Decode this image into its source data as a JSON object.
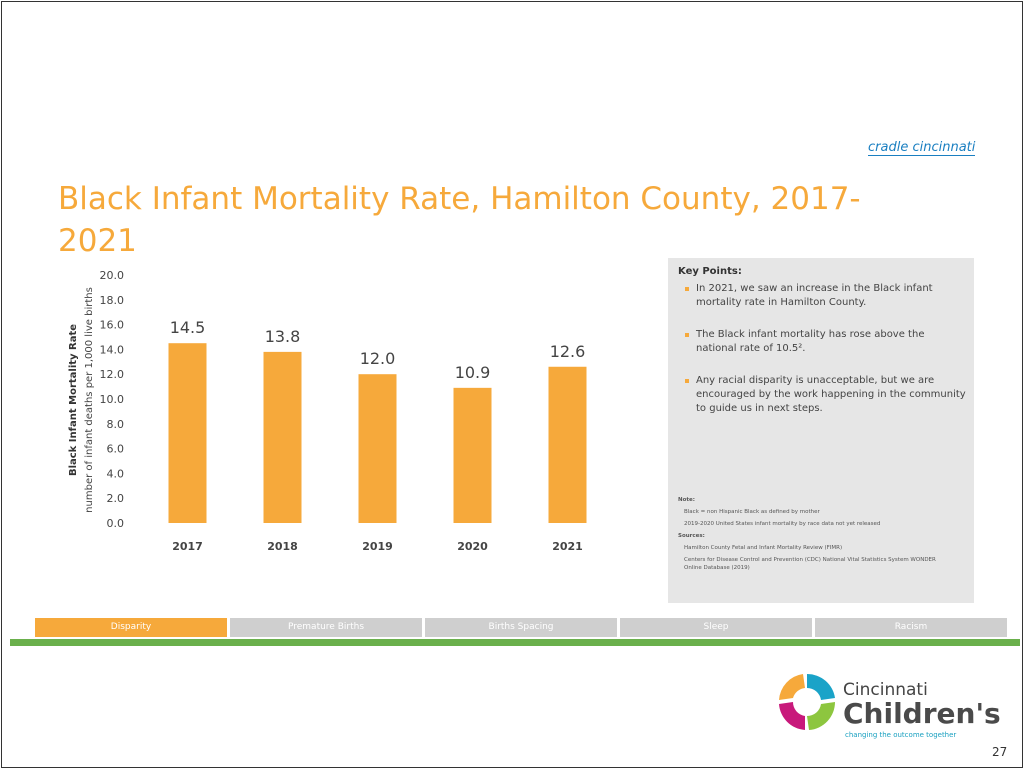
{
  "logo_top": "cradle cincinnati",
  "chart_data": {
    "type": "bar",
    "title": "Black Infant Mortality Rate, Hamilton County, 2017-2021",
    "y_label": "Black Infant Mortality Rate",
    "y_sublabel": "number of infant deaths per 1,000 live births",
    "categories": [
      "2017",
      "2018",
      "2019",
      "2020",
      "2021"
    ],
    "values": [
      14.5,
      13.8,
      12.0,
      10.9,
      12.6
    ],
    "value_labels": [
      "14.5",
      "13.8",
      "12.0",
      "10.9",
      "12.6"
    ],
    "color": "#f6a93b",
    "ylim": [
      0,
      20
    ],
    "yticks": [
      {
        "value": 0,
        "label": "0.0"
      },
      {
        "value": 2,
        "label": "2.0"
      },
      {
        "value": 4,
        "label": "4.0"
      },
      {
        "value": 6,
        "label": "6.0"
      },
      {
        "value": 8,
        "label": "8.0"
      },
      {
        "value": 10,
        "label": "10.0"
      },
      {
        "value": 12,
        "label": "12.0"
      },
      {
        "value": 14,
        "label": "14.0"
      },
      {
        "value": 16,
        "label": "16.0"
      },
      {
        "value": 18,
        "label": "18.0"
      },
      {
        "value": 20,
        "label": "20.0"
      }
    ],
    "grid": false
  },
  "key_points": {
    "title": "Key Points:",
    "items": [
      "In 2021, we saw an increase in the Black infant mortality rate in Hamilton County.",
      "The Black infant mortality has rose above the national rate of 10.5².",
      "Any racial disparity is unacceptable, but we are encouraged by the work happening in the community to guide us in next steps."
    ]
  },
  "notes": {
    "title": "Note:",
    "items": [
      "Black = non Hispanic Black as defined by mother",
      "2019-2020 United States infant mortality by race data not yet released"
    ],
    "sources_title": "Sources:",
    "sources": [
      "Hamilton County Fetal and Infant Mortality Review (FIMR)",
      "Centers for Disease Control and Prevention (CDC) National Vital Statistics System WONDER Online Database (2019)"
    ]
  },
  "tabs": [
    "Disparity",
    "Premature Births",
    "Births Spacing",
    "Sleep",
    "Racism"
  ],
  "footer": {
    "logo_line1": "Cincinnati",
    "logo_line2": "Children's",
    "tagline": "changing the outcome together",
    "page_number": "27"
  }
}
